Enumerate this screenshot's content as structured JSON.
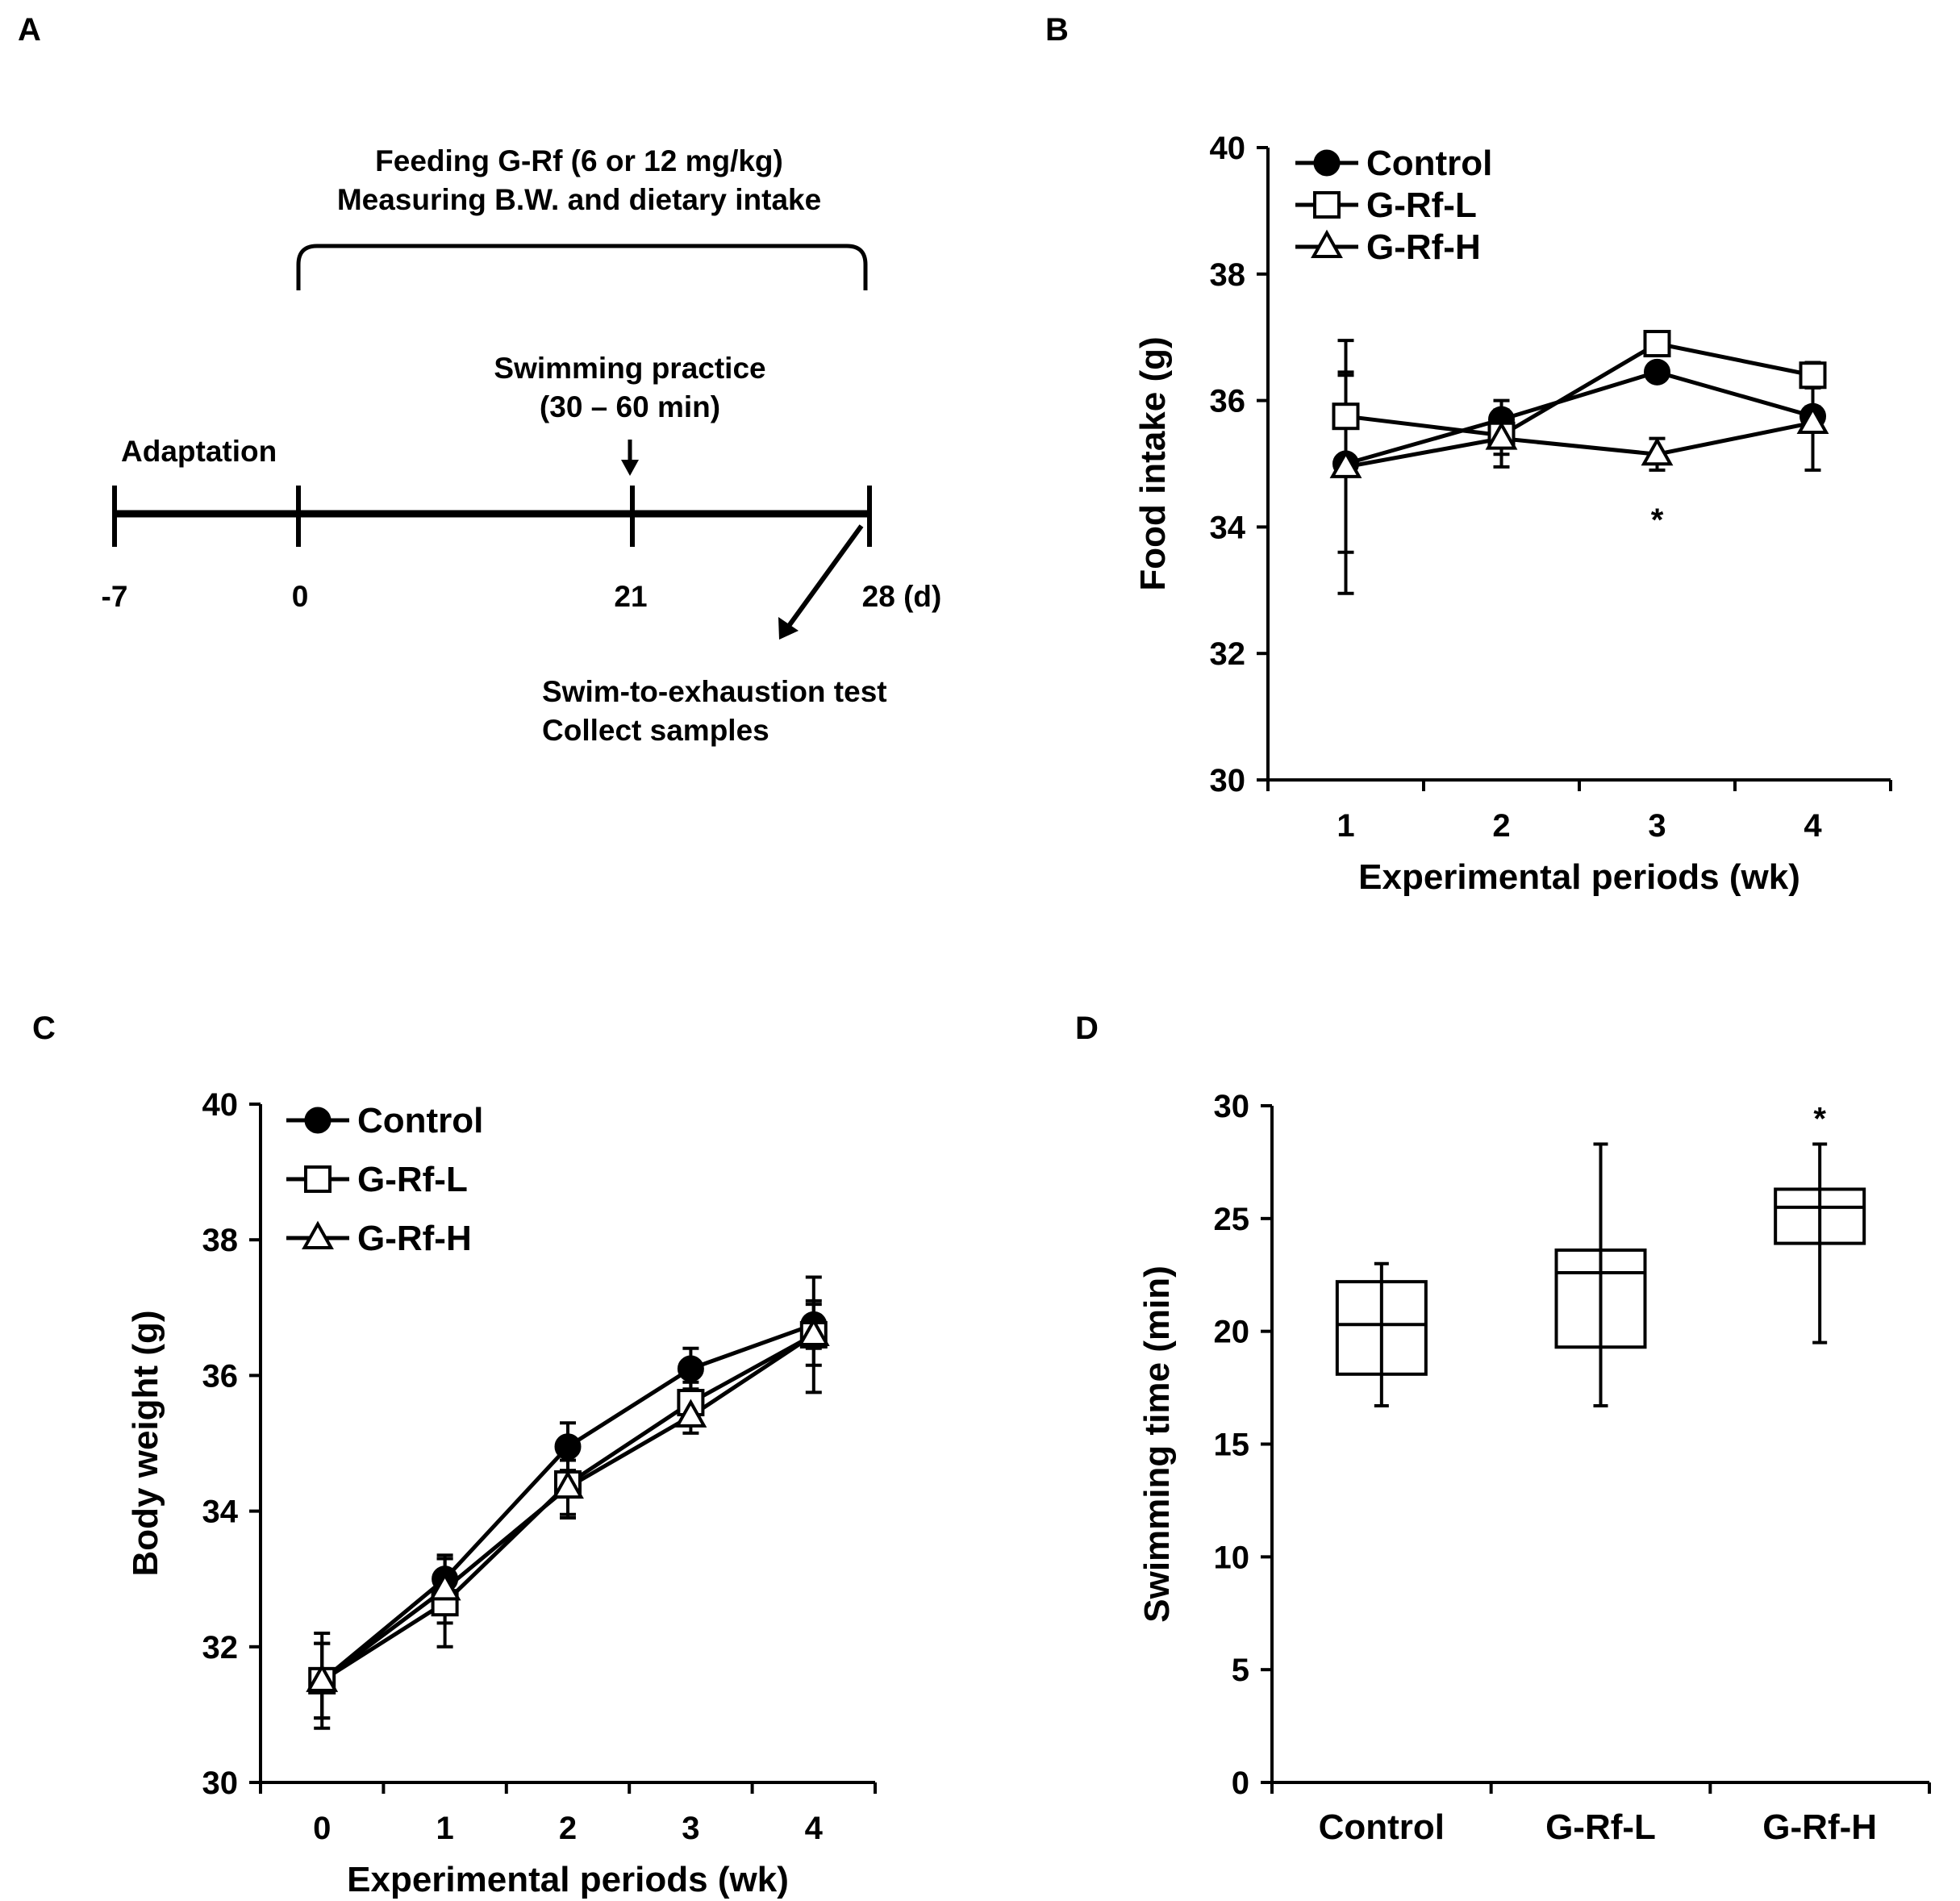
{
  "panels": {
    "A": {
      "label": "A",
      "feeding_line1": "Feeding G-Rf (6 or 12 mg/kg)",
      "feeding_line2": "Measuring B.W. and dietary intake",
      "swimming_line1": "Swimming practice",
      "swimming_line2": "(30 – 60 min)",
      "adaptation": "Adaptation",
      "ticks": [
        "-7",
        "0",
        "21",
        "28 (d)"
      ],
      "test_line1": "Swim-to-exhaustion test",
      "test_line2": "Collect samples"
    },
    "B": {
      "label": "B"
    },
    "C": {
      "label": "C"
    },
    "D": {
      "label": "D"
    }
  },
  "colors": {
    "ink": "#000000",
    "background": "#ffffff"
  },
  "legend": {
    "entries": [
      {
        "name": "Control",
        "marker": "filled-circle"
      },
      {
        "name": "G-Rf-L",
        "marker": "open-square"
      },
      {
        "name": "G-Rf-H",
        "marker": "open-triangle"
      }
    ]
  },
  "chart_data": [
    {
      "panel": "B",
      "type": "line",
      "title": "",
      "xlabel": "Experimental periods (wk)",
      "ylabel": "Food intake (g)",
      "categories": [
        "1",
        "2",
        "3",
        "4"
      ],
      "ylim": [
        30,
        40
      ],
      "yticks": [
        30,
        32,
        34,
        36,
        38,
        40
      ],
      "grid": false,
      "legend_position": "top-left",
      "series": [
        {
          "name": "Control",
          "values": [
            35.0,
            35.7,
            36.45,
            35.75
          ],
          "errors": [
            1.4,
            0.3,
            0.0,
            0.15
          ]
        },
        {
          "name": "G-Rf-L",
          "values": [
            35.75,
            35.45,
            36.9,
            36.4
          ],
          "errors": [
            0.7,
            0.3,
            0.0,
            0.2
          ]
        },
        {
          "name": "G-Rf-H",
          "values": [
            34.95,
            35.4,
            35.15,
            35.65
          ],
          "errors": [
            2.0,
            0.45,
            0.25,
            0.75
          ]
        }
      ],
      "annotations": [
        {
          "category": "3",
          "text": "*"
        }
      ]
    },
    {
      "panel": "C",
      "type": "line",
      "title": "",
      "xlabel": "Experimental periods (wk)",
      "ylabel": "Body weight (g)",
      "categories": [
        "0",
        "1",
        "2",
        "3",
        "4"
      ],
      "ylim": [
        30,
        40
      ],
      "yticks": [
        30,
        32,
        34,
        36,
        38,
        40
      ],
      "grid": false,
      "legend_position": "top-left",
      "series": [
        {
          "name": "Control",
          "values": [
            31.5,
            33.0,
            34.95,
            36.1,
            36.75
          ],
          "errors": [
            0.55,
            0.3,
            0.35,
            0.3,
            0.35
          ]
        },
        {
          "name": "G-Rf-L",
          "values": [
            31.5,
            32.65,
            34.4,
            35.6,
            36.6
          ],
          "errors": [
            0.7,
            0.65,
            0.5,
            0.3,
            0.85
          ]
        },
        {
          "name": "G-Rf-H",
          "values": [
            31.5,
            32.85,
            34.35,
            35.4,
            36.6
          ],
          "errors": [
            0.55,
            0.5,
            0.4,
            0.25,
            0.45
          ]
        }
      ]
    },
    {
      "panel": "D",
      "type": "box",
      "title": "",
      "xlabel": "",
      "ylabel": "Swimming time (min)",
      "categories": [
        "Control",
        "G-Rf-L",
        "G-Rf-H"
      ],
      "ylim": [
        0,
        30
      ],
      "yticks": [
        0,
        5,
        10,
        15,
        20,
        25,
        30
      ],
      "grid": false,
      "boxes": [
        {
          "name": "Control",
          "min": 16.7,
          "q1": 18.1,
          "median": 20.3,
          "q3": 22.2,
          "max": 23.0
        },
        {
          "name": "G-Rf-L",
          "min": 16.7,
          "q1": 19.3,
          "median": 22.6,
          "q3": 23.6,
          "max": 28.3
        },
        {
          "name": "G-Rf-H",
          "min": 19.5,
          "q1": 23.9,
          "median": 25.5,
          "q3": 26.3,
          "max": 28.3
        }
      ],
      "annotations": [
        {
          "category": "G-Rf-H",
          "text": "*"
        }
      ]
    }
  ]
}
